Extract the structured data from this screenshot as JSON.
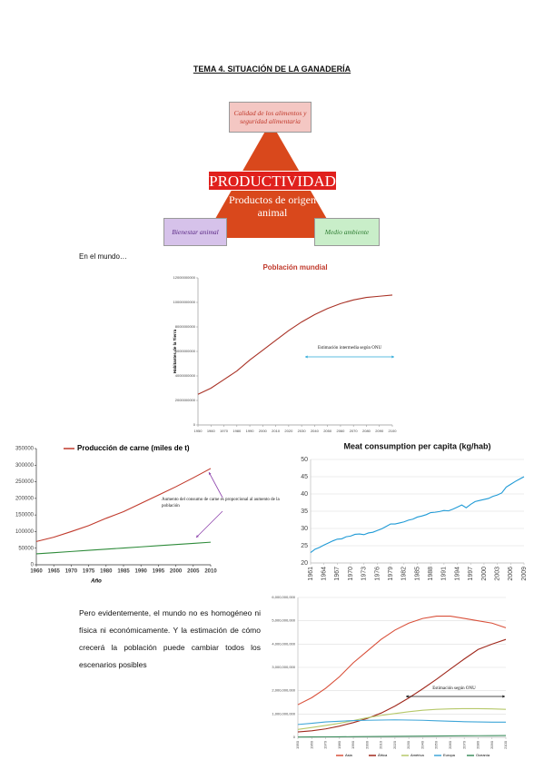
{
  "title": "TEMA 4. SITUACIÓN DE LA GANADERÍA",
  "diagram": {
    "top": "Calidad de los alimentos y seguridad alimentaria",
    "center": "PRODUCTIVIDAD",
    "subtitle": "Productos de origen animal",
    "left": "Bienestar animal",
    "right": "Medio ambiente"
  },
  "intro": "En el mundo…",
  "paragraph": "Pero evidentemente, el mundo no es homogéneo ni física ni económicamente. Y la estimación de cómo crecerá la población puede cambiar todos los escenarios posibles",
  "chart_data": [
    {
      "type": "line",
      "title": "Población mundial",
      "ylabel": "Habitantes de la Tierra",
      "annotation": "Estimación intermedia según ONU",
      "x": [
        1950,
        1960,
        1970,
        1980,
        1990,
        2000,
        2010,
        2020,
        2030,
        2040,
        2050,
        2060,
        2070,
        2080,
        2090,
        2100
      ],
      "xlim": [
        1950,
        2100
      ],
      "xticks": [
        1950,
        1960,
        1970,
        1980,
        1990,
        2000,
        2010,
        2020,
        2030,
        2040,
        2050,
        2060,
        2070,
        2080,
        2090,
        2100
      ],
      "ylim": [
        0,
        12000000000
      ],
      "yticks": [
        0,
        2000000000,
        4000000000,
        6000000000,
        8000000000,
        10000000000,
        12000000000
      ],
      "grid": false,
      "series": [
        {
          "color": "#a93226",
          "values": [
            2500000000,
            3000000000,
            3700000000,
            4400000000,
            5300000000,
            6100000000,
            6900000000,
            7700000000,
            8400000000,
            9000000000,
            9500000000,
            9900000000,
            10200000000,
            10400000000,
            10500000000,
            10600000000
          ]
        }
      ]
    },
    {
      "type": "line",
      "xlabel": "Año",
      "annotation": "Aumento del consumo de carne es proporcional al aumento de la población",
      "x": [
        1960,
        1965,
        1970,
        1975,
        1980,
        1985,
        1990,
        1995,
        2000,
        2005,
        2010
      ],
      "xlim": [
        1960,
        2010
      ],
      "xticks": [
        1960,
        1965,
        1970,
        1975,
        1980,
        1985,
        1990,
        1995,
        2000,
        2005,
        2010
      ],
      "ylim": [
        0,
        350000
      ],
      "yticks": [
        0,
        50000,
        100000,
        150000,
        200000,
        250000,
        300000,
        350000
      ],
      "grid": false,
      "series": [
        {
          "name": "Producción de carne (miles de t)",
          "color": "#c0392b",
          "values": [
            70000,
            83000,
            100000,
            118000,
            140000,
            160000,
            185000,
            210000,
            235000,
            262000,
            290000
          ]
        },
        {
          "color": "#2e8b3a",
          "values": [
            33000,
            36500,
            40000,
            43500,
            47000,
            50500,
            54000,
            57500,
            61000,
            64500,
            68000
          ]
        }
      ]
    },
    {
      "type": "line",
      "title": "Meat consumption per capita (kg/hab)",
      "x": [
        1961,
        1962,
        1963,
        1964,
        1965,
        1966,
        1967,
        1968,
        1969,
        1970,
        1971,
        1972,
        1973,
        1974,
        1975,
        1976,
        1977,
        1978,
        1979,
        1980,
        1981,
        1982,
        1983,
        1984,
        1985,
        1986,
        1987,
        1988,
        1989,
        1990,
        1991,
        1992,
        1993,
        1994,
        1995,
        1996,
        1997,
        1998,
        1999,
        2000,
        2001,
        2002,
        2003,
        2004,
        2005,
        2006,
        2007,
        2008,
        2009
      ],
      "xlim": [
        1961,
        2009
      ],
      "xticks": [
        1961,
        1964,
        1967,
        1970,
        1973,
        1976,
        1979,
        1982,
        1985,
        1988,
        1991,
        1994,
        1997,
        2000,
        2003,
        2006,
        2009
      ],
      "ylim": [
        20,
        50
      ],
      "yticks": [
        20,
        25,
        30,
        35,
        40,
        45,
        50
      ],
      "grid": true,
      "series": [
        {
          "color": "#1f9ad6",
          "values": [
            23.0,
            24.0,
            24.5,
            25.2,
            25.8,
            26.4,
            26.9,
            27.0,
            27.6,
            27.8,
            28.3,
            28.4,
            28.2,
            28.7,
            28.9,
            29.4,
            29.9,
            30.6,
            31.3,
            31.3,
            31.6,
            31.9,
            32.4,
            32.7,
            33.3,
            33.6,
            34.0,
            34.6,
            34.7,
            34.9,
            35.2,
            35.1,
            35.6,
            36.2,
            36.8,
            36.0,
            37.0,
            37.8,
            38.1,
            38.4,
            38.7,
            39.3,
            39.7,
            40.3,
            42.0,
            42.8,
            43.6,
            44.3,
            45.0
          ]
        }
      ]
    },
    {
      "type": "line",
      "annotation": "Estimación según ONU",
      "x": [
        1950,
        1960,
        1970,
        1980,
        1990,
        2000,
        2010,
        2020,
        2030,
        2040,
        2050,
        2060,
        2070,
        2080,
        2090,
        2100
      ],
      "xlim": [
        1950,
        2100
      ],
      "xticks": [
        1950,
        1960,
        1970,
        1980,
        1990,
        2000,
        2010,
        2020,
        2030,
        2040,
        2050,
        2060,
        2070,
        2080,
        2090,
        2100
      ],
      "ylim": [
        0,
        6000000000
      ],
      "yticks": [
        0,
        {
          "value": 1000000000,
          "label": "1,000,000,000"
        },
        {
          "value": 2000000000,
          "label": "2,000,000,000"
        },
        {
          "value": 3000000000,
          "label": "3,000,000,000"
        },
        {
          "value": 4000000000,
          "label": "4,000,000,000"
        },
        {
          "value": 5000000000,
          "label": "5,000,000,000"
        },
        {
          "value": 6000000000,
          "label": "6,000,000,000"
        }
      ],
      "grid": true,
      "series": [
        {
          "name": "Asia",
          "color": "#d9503a",
          "values": [
            1400000000,
            1700000000,
            2100000000,
            2600000000,
            3200000000,
            3700000000,
            4200000000,
            4600000000,
            4900000000,
            5100000000,
            5200000000,
            5200000000,
            5100000000,
            5000000000,
            4900000000,
            4700000000
          ]
        },
        {
          "name": "África",
          "color": "#a0281c",
          "values": [
            230000000,
            280000000,
            360000000,
            480000000,
            630000000,
            810000000,
            1040000000,
            1340000000,
            1690000000,
            2080000000,
            2490000000,
            2930000000,
            3360000000,
            3770000000,
            4000000000,
            4200000000
          ]
        },
        {
          "name": "América",
          "color": "#b6c86a",
          "values": [
            340000000,
            420000000,
            510000000,
            600000000,
            720000000,
            840000000,
            940000000,
            1020000000,
            1100000000,
            1160000000,
            1200000000,
            1220000000,
            1230000000,
            1230000000,
            1220000000,
            1200000000
          ]
        },
        {
          "name": "Europa",
          "color": "#3fa6d8",
          "values": [
            550000000,
            600000000,
            660000000,
            690000000,
            720000000,
            730000000,
            740000000,
            750000000,
            740000000,
            730000000,
            710000000,
            690000000,
            670000000,
            660000000,
            650000000,
            650000000
          ]
        },
        {
          "name": "Oceanía",
          "color": "#3f8f5f",
          "values": [
            13000000,
            16000000,
            20000000,
            23000000,
            27000000,
            31000000,
            37000000,
            42000000,
            48000000,
            53000000,
            57000000,
            61000000,
            65000000,
            68000000,
            71000000,
            75000000
          ]
        }
      ]
    }
  ]
}
